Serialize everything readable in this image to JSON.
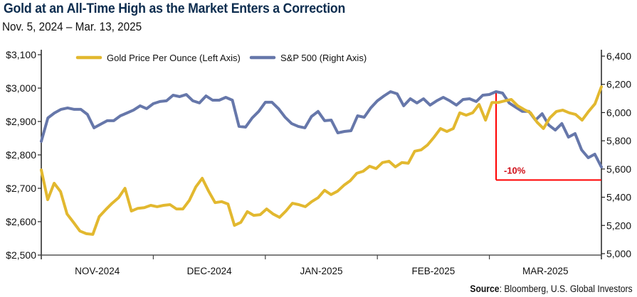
{
  "chart_data": {
    "type": "line",
    "title": "Gold at an All-Time High as the Market Enters a Correction",
    "subtitle": "Nov. 5, 2024 – Mar. 13, 2025",
    "source_label": "Source",
    "source_text": ": Bloomberg, U.S. Global Investors",
    "x_categories": [
      "NOV-2024",
      "DEC-2024",
      "JAN-2025",
      "FEB-2025",
      "MAR-2025"
    ],
    "left_axis": {
      "label": "Gold Price Per Ounce",
      "range": [
        2500,
        3100
      ],
      "ticks": [
        "$2,500",
        "$2,600",
        "$2,700",
        "$2,800",
        "$2,900",
        "$3,000",
        "$3,100"
      ],
      "tick_values": [
        2500,
        2600,
        2700,
        2800,
        2900,
        3000,
        3100
      ]
    },
    "right_axis": {
      "label": "S&P 500",
      "range": [
        5000,
        6400
      ],
      "ticks": [
        "5,000",
        "5,200",
        "5,400",
        "5,600",
        "5,800",
        "6,000",
        "6,200",
        "6,400"
      ],
      "tick_values": [
        5000,
        5200,
        5400,
        5600,
        5800,
        6000,
        6200,
        6400
      ]
    },
    "legend": {
      "placement": "top",
      "items": [
        {
          "label": "Gold Price Per Ounce (Left Axis)",
          "color": "#e2b82f"
        },
        {
          "label": "S&P 500 (Right Axis)",
          "color": "#6677aa"
        }
      ]
    },
    "series": [
      {
        "name": "Gold Price Per Ounce (Left Axis)",
        "axis": "left",
        "color": "#e2b82f",
        "values": [
          2755,
          2666,
          2715,
          2690,
          2623,
          2598,
          2572,
          2564,
          2562,
          2615,
          2636,
          2655,
          2672,
          2700,
          2632,
          2640,
          2642,
          2649,
          2645,
          2649,
          2651,
          2638,
          2638,
          2664,
          2704,
          2730,
          2691,
          2657,
          2660,
          2653,
          2589,
          2598,
          2630,
          2619,
          2621,
          2638,
          2623,
          2613,
          2632,
          2655,
          2651,
          2645,
          2660,
          2672,
          2694,
          2681,
          2691,
          2709,
          2723,
          2745,
          2751,
          2766,
          2759,
          2777,
          2781,
          2764,
          2777,
          2775,
          2811,
          2815,
          2830,
          2853,
          2879,
          2870,
          2879,
          2926,
          2919,
          2926,
          2951,
          2904,
          2957,
          2957,
          2962,
          2966,
          2947,
          2936,
          2926,
          2898,
          2879,
          2911,
          2930,
          2934,
          2926,
          2921,
          2904,
          2930,
          2953,
          3004
        ]
      },
      {
        "name": "S&P 500 (Right Axis)",
        "axis": "right",
        "color": "#6677aa",
        "values": [
          5796,
          5962,
          5997,
          6023,
          6033,
          6023,
          6023,
          5987,
          5892,
          5917,
          5942,
          5942,
          5977,
          5997,
          6018,
          6048,
          6028,
          6063,
          6078,
          6083,
          6123,
          6113,
          6128,
          6083,
          6068,
          6118,
          6088,
          6088,
          6108,
          6088,
          5902,
          5897,
          5962,
          6008,
          6073,
          6073,
          6028,
          5967,
          5922,
          5902,
          5892,
          5972,
          6008,
          5942,
          5947,
          5856,
          5866,
          5871,
          5977,
          5967,
          6033,
          6083,
          6118,
          6148,
          6133,
          6048,
          6098,
          6068,
          6098,
          6053,
          6083,
          6108,
          6083,
          6053,
          6093,
          6098,
          6078,
          6123,
          6128,
          6148,
          6138,
          6068,
          6038,
          6008,
          6008,
          5947,
          5992,
          5912,
          5876,
          5922,
          5826,
          5851,
          5735,
          5680,
          5705,
          5614
        ]
      }
    ],
    "annotation": {
      "label": "-10%",
      "color": "#d0101a",
      "from_value": 6144,
      "to_value": 5522
    }
  }
}
